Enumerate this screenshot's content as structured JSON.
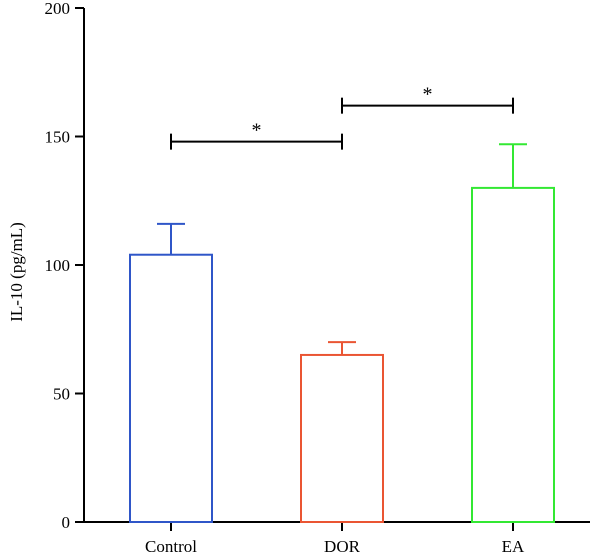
{
  "chart_data": {
    "type": "bar",
    "title": "",
    "xlabel": "",
    "ylabel": "IL-10 (pg/mL)",
    "ylim": [
      0,
      200
    ],
    "yticks": [
      0,
      50,
      100,
      150,
      200
    ],
    "categories": [
      "Control",
      "DOR",
      "EA"
    ],
    "values": [
      104,
      65,
      130
    ],
    "errors": [
      12,
      5,
      17
    ],
    "bar_colors": [
      "#2f56c8",
      "#ea5533",
      "#33e833"
    ],
    "fill": "none",
    "grid": false,
    "legend": "none",
    "significance": [
      {
        "from": 0,
        "to": 1,
        "y": 148,
        "label": "*"
      },
      {
        "from": 1,
        "to": 2,
        "y": 162,
        "label": "*"
      }
    ]
  }
}
